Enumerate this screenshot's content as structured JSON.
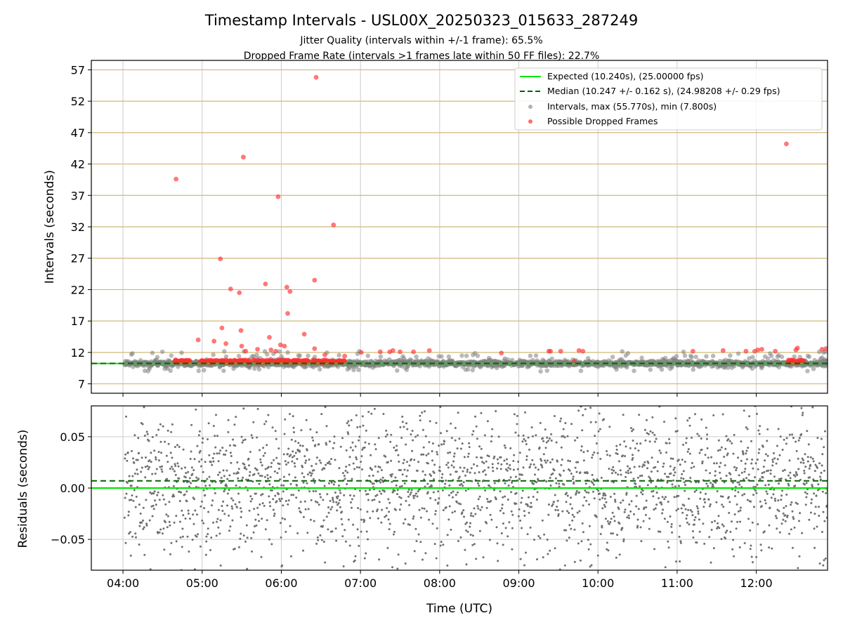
{
  "chart_data": [
    {
      "type": "scatter",
      "title": "Timestamp Intervals - USL00X_20250323_015633_287249",
      "subtitle_lines": [
        "Jitter Quality (intervals within +/-1 frame): 65.5%",
        "Dropped Frame Rate (intervals >1 frames late within 50 FF files): 22.7%"
      ],
      "ylabel": "Intervals (seconds)",
      "xlim_hours": [
        3.6,
        12.9
      ],
      "ylim": [
        5.5,
        58.5
      ],
      "yticks": [
        7,
        12,
        17,
        22,
        27,
        32,
        37,
        42,
        47,
        52,
        57
      ],
      "ytick_labels": [
        "7",
        "12",
        "17",
        "22",
        "27",
        "32",
        "37",
        "42",
        "47",
        "52",
        "57"
      ],
      "grid": true,
      "horizontal_gridline_color": "#d1b87a",
      "legend_position": "top-right",
      "legend": [
        {
          "label": "Expected (10.240s), (25.00000 fps)",
          "kind": "line",
          "color": "#00e600"
        },
        {
          "label": "Median (10.247 +/- 0.162 s), (24.98208 +/- 0.29 fps)",
          "kind": "dashed",
          "color": "#006400"
        },
        {
          "label": "Intervals, max (55.770s), min (7.800s)",
          "kind": "marker",
          "color": "#808080"
        },
        {
          "label": "Possible Dropped Frames",
          "kind": "marker",
          "color": "#ff3030"
        }
      ],
      "expected_value": 10.24,
      "median_value": 10.247,
      "max_interval": 55.77,
      "min_interval": 7.8,
      "dropped_outliers_hour_value": [
        [
          4.67,
          39.6
        ],
        [
          4.95,
          14.0
        ],
        [
          5.15,
          13.8
        ],
        [
          5.23,
          26.9
        ],
        [
          5.25,
          15.9
        ],
        [
          5.3,
          13.4
        ],
        [
          5.36,
          22.1
        ],
        [
          5.47,
          21.5
        ],
        [
          5.49,
          15.5
        ],
        [
          5.5,
          13.0
        ],
        [
          5.52,
          43.1
        ],
        [
          5.55,
          12.2
        ],
        [
          5.7,
          12.5
        ],
        [
          5.8,
          22.9
        ],
        [
          5.85,
          14.4
        ],
        [
          5.87,
          12.4
        ],
        [
          5.93,
          12.2
        ],
        [
          5.96,
          36.8
        ],
        [
          5.99,
          13.2
        ],
        [
          6.04,
          13.0
        ],
        [
          6.07,
          22.4
        ],
        [
          6.08,
          18.2
        ],
        [
          6.11,
          21.7
        ],
        [
          6.29,
          14.9
        ],
        [
          6.42,
          23.5
        ],
        [
          6.42,
          12.6
        ],
        [
          6.44,
          55.8
        ],
        [
          6.55,
          11.6
        ],
        [
          6.66,
          32.3
        ],
        [
          6.8,
          11.4
        ],
        [
          7.01,
          12.0
        ],
        [
          7.25,
          12.1
        ],
        [
          7.37,
          12.1
        ],
        [
          7.41,
          12.3
        ],
        [
          7.5,
          12.1
        ],
        [
          7.67,
          12.1
        ],
        [
          7.87,
          12.3
        ],
        [
          8.78,
          11.9
        ],
        [
          9.38,
          12.2
        ],
        [
          9.4,
          12.2
        ],
        [
          9.53,
          12.2
        ],
        [
          9.7,
          10.6
        ],
        [
          9.76,
          12.3
        ],
        [
          9.81,
          12.2
        ],
        [
          11.2,
          12.2
        ],
        [
          11.58,
          12.3
        ],
        [
          11.87,
          12.2
        ],
        [
          11.98,
          12.2
        ],
        [
          12.02,
          12.4
        ],
        [
          12.07,
          12.5
        ],
        [
          12.24,
          12.2
        ],
        [
          12.38,
          45.2
        ],
        [
          12.5,
          12.4
        ],
        [
          12.52,
          12.7
        ],
        [
          12.83,
          12.5
        ],
        [
          12.88,
          12.6
        ]
      ],
      "dropped_cluster_ranges_hours": [
        [
          4.65,
          4.85
        ],
        [
          4.97,
          5.6
        ],
        [
          5.65,
          6.35
        ],
        [
          6.4,
          6.8
        ],
        [
          12.4,
          12.6
        ]
      ]
    },
    {
      "type": "scatter",
      "xlabel": "Time (UTC)",
      "ylabel": "Residuals (seconds)",
      "xlim_hours": [
        3.6,
        12.9
      ],
      "ylim": [
        -0.08,
        0.08
      ],
      "yticks": [
        -0.05,
        0.0,
        0.05
      ],
      "ytick_labels": [
        "−0.05",
        "0.00",
        "0.05"
      ],
      "xticks_hours": [
        4,
        5,
        6,
        7,
        8,
        9,
        10,
        11,
        12
      ],
      "xtick_labels": [
        "04:00",
        "05:00",
        "06:00",
        "07:00",
        "08:00",
        "09:00",
        "10:00",
        "11:00",
        "12:00"
      ],
      "expected_residual": 0.0,
      "median_residual": 0.007,
      "grid": true,
      "point_color": "#707070",
      "data_start_hour": 4.02,
      "data_end_hour": 12.9,
      "approx_point_count": 2200,
      "residual_spread_range": [
        -0.08,
        0.08
      ]
    }
  ]
}
